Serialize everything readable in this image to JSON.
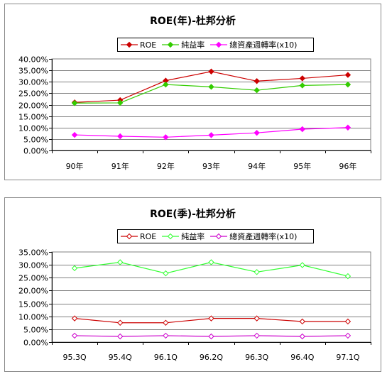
{
  "chart_data": [
    {
      "type": "line",
      "title": "ROE(年)-杜邦分析",
      "categories": [
        "90年",
        "91年",
        "92年",
        "93年",
        "94年",
        "95年",
        "96年"
      ],
      "ylim": [
        0,
        40
      ],
      "yticks": [
        "0.00%",
        "5.00%",
        "10.00%",
        "15.00%",
        "20.00%",
        "25.00%",
        "30.00%",
        "35.00%",
        "40.00%"
      ],
      "grid": true,
      "legend_placement": "top",
      "marker_style": "filled",
      "series": [
        {
          "name": "ROE",
          "color": "#cc0000",
          "values": [
            21.0,
            22.0,
            30.5,
            34.5,
            30.3,
            31.5,
            33.0
          ]
        },
        {
          "name": "純益率",
          "color": "#33cc00",
          "values": [
            20.7,
            20.8,
            28.8,
            27.8,
            26.3,
            28.4,
            28.8
          ]
        },
        {
          "name": "總資產週轉率(x10)",
          "color": "#ff00ff",
          "values": [
            6.8,
            6.2,
            5.8,
            6.7,
            7.7,
            9.3,
            10.0
          ]
        }
      ]
    },
    {
      "type": "line",
      "title": "ROE(季)-杜邦分析",
      "categories": [
        "95.3Q",
        "95.4Q",
        "96.1Q",
        "96.2Q",
        "96.3Q",
        "96.4Q",
        "97.1Q"
      ],
      "ylim": [
        0,
        35
      ],
      "yticks": [
        "0.00%",
        "5.00%",
        "10.00%",
        "15.00%",
        "20.00%",
        "25.00%",
        "30.00%",
        "35.00%"
      ],
      "grid": true,
      "legend_placement": "top",
      "marker_style": "hollow",
      "series": [
        {
          "name": "ROE",
          "color": "#cc0000",
          "values": [
            9.2,
            7.5,
            7.5,
            9.2,
            9.2,
            8.0,
            8.0
          ]
        },
        {
          "name": "純益率",
          "color": "#33ff33",
          "values": [
            28.7,
            31.0,
            26.7,
            31.0,
            27.2,
            29.9,
            25.6
          ]
        },
        {
          "name": "總資產週轉率(x10)",
          "color": "#cc00cc",
          "values": [
            2.5,
            2.2,
            2.5,
            2.2,
            2.5,
            2.2,
            2.5
          ]
        }
      ]
    }
  ]
}
